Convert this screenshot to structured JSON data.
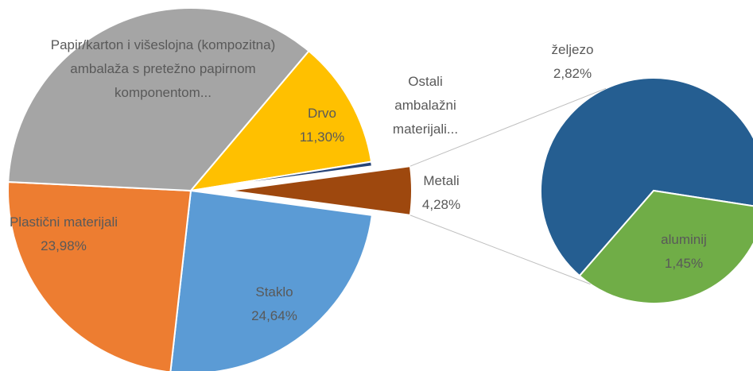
{
  "chart_data": [
    {
      "type": "pie",
      "labels": [
        "Metali",
        "Staklo",
        "Plastični materijali",
        "Papir/karton i višeslojna (kompozitna) ambalaža s pretežno papirnom komponentom...",
        "Drvo",
        "Ostali ambalažni materijali..."
      ],
      "values": [
        4.28,
        24.64,
        23.98,
        35.4,
        11.3,
        0.4
      ],
      "value_labels": [
        "4,28%",
        "24,64%",
        "23,98%",
        null,
        "11,30%",
        null
      ],
      "colors": [
        "#9e480e",
        "#5b9bd5",
        "#ed7d31",
        "#a5a5a5",
        "#ffc000",
        "#264478"
      ]
    },
    {
      "type": "pie",
      "labels": [
        "željezo",
        "aluminij"
      ],
      "values": [
        2.82,
        1.45
      ],
      "value_labels": [
        "2,82%",
        "1,45%"
      ],
      "colors": [
        "#255e91",
        "#70ad47"
      ]
    }
  ]
}
